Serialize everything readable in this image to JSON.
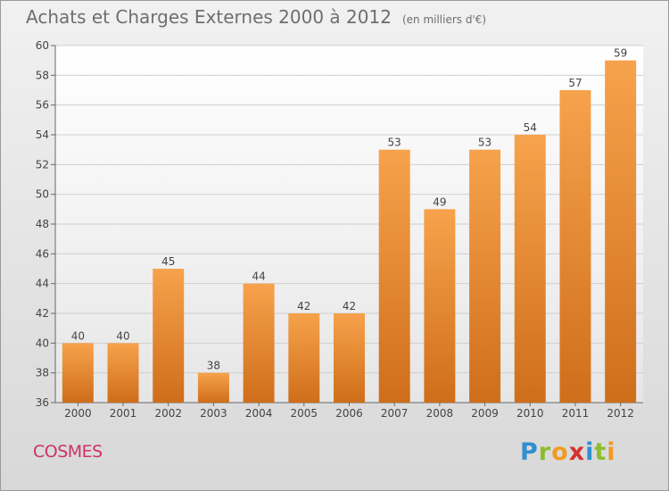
{
  "chart_data": {
    "type": "bar",
    "title": "Achats et Charges Externes 2000 à 2012",
    "subtitle": "(en milliers d'€)",
    "categories": [
      "2000",
      "2001",
      "2002",
      "2003",
      "2004",
      "2005",
      "2006",
      "2007",
      "2008",
      "2009",
      "2010",
      "2011",
      "2012"
    ],
    "values": [
      40,
      40,
      45,
      38,
      44,
      42,
      42,
      53,
      49,
      53,
      54,
      57,
      59
    ],
    "data_labels": [
      "40",
      "40",
      "45",
      "38",
      "44",
      "42",
      "42",
      "53",
      "49",
      "53",
      "54",
      "57",
      "59"
    ],
    "ylim": [
      36,
      60
    ],
    "yticks": [
      36,
      38,
      40,
      42,
      44,
      46,
      48,
      50,
      52,
      54,
      56,
      58,
      60
    ],
    "xlabel": "",
    "ylabel": "",
    "grid": true,
    "bar_color": "#f0903a"
  },
  "footer": {
    "commune": "COSMES",
    "brand_letters": [
      {
        "ch": "P",
        "color": "#2f8fd0"
      },
      {
        "ch": "r",
        "color": "#8cbd2c"
      },
      {
        "ch": "o",
        "color": "#f29a22"
      },
      {
        "ch": "x",
        "color": "#d6312f"
      },
      {
        "ch": "i",
        "color": "#2f8fd0"
      },
      {
        "ch": "t",
        "color": "#8cbd2c"
      },
      {
        "ch": "i",
        "color": "#f29a22"
      }
    ]
  }
}
